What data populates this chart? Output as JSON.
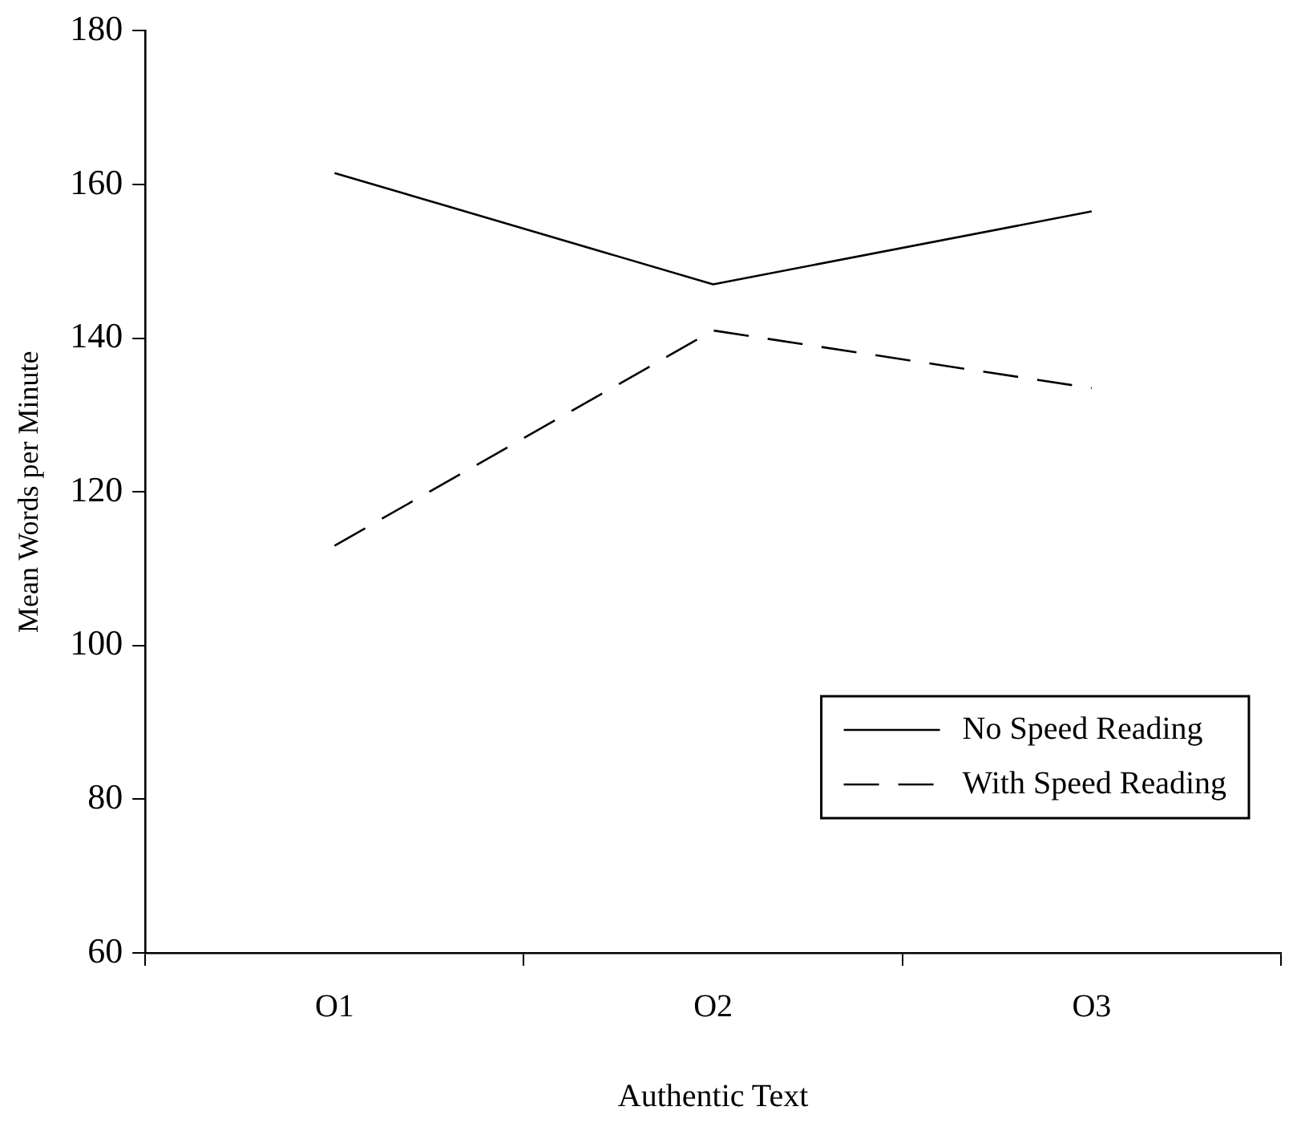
{
  "chart_data": {
    "type": "line",
    "xlabel": "Authentic Text",
    "ylabel": "Mean Words per Minute",
    "categories": [
      "O1",
      "O2",
      "O3"
    ],
    "series": [
      {
        "name": "No Speed Reading",
        "color": "#000000",
        "values": [
          161.5,
          147,
          156.5
        ],
        "line_style": "solid"
      },
      {
        "name": "With Speed Reading",
        "color": "#000000",
        "values": [
          113,
          141,
          133.5
        ],
        "line_style": "dashed"
      }
    ],
    "ylim": [
      60,
      180
    ],
    "yticks": [
      60,
      80,
      100,
      120,
      140,
      160,
      180
    ],
    "grid": false,
    "legend": "bottom right",
    "marker": "none"
  }
}
